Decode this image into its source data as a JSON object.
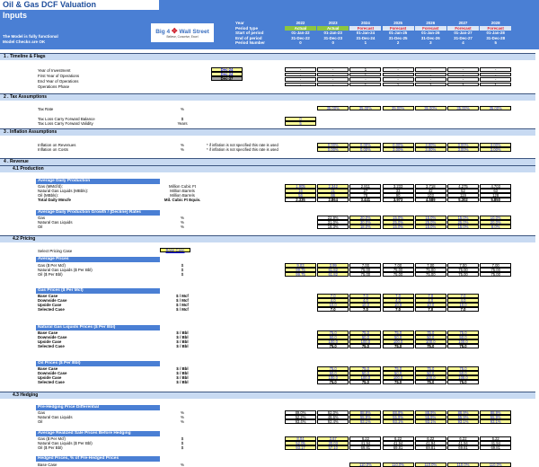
{
  "title": "Oil & Gas DCF Valuation",
  "subtitle": "Inputs",
  "status": [
    "The Model is fully functional",
    "Model Checks are OK"
  ],
  "logo": {
    "text_left": "Big 4",
    "text_right": "Wall Street",
    "tagline": "Believe, Conceive, Excel",
    "icon": "eagle-icon"
  },
  "header": {
    "labels": [
      "Year",
      "Period type",
      "Start of period",
      "End of period",
      "Period Number"
    ],
    "years": [
      "2022",
      "2023",
      "2024",
      "2025",
      "2026",
      "2027",
      "2028"
    ],
    "period_types": [
      "Actual",
      "Actual",
      "Forecast",
      "Forecast",
      "Forecast",
      "Forecast",
      "Forecast"
    ],
    "start": [
      "01-Jan-22",
      "01-Jan-23",
      "01-Jan-24",
      "01-Jan-25",
      "01-Jan-26",
      "01-Jan-27",
      "01-Jan-28"
    ],
    "end": [
      "31-Dec-22",
      "31-Dec-23",
      "31-Dec-24",
      "31-Dec-25",
      "31-Dec-26",
      "31-Dec-27",
      "31-Dec-28"
    ],
    "period_number": [
      "0",
      "0",
      "1",
      "2",
      "3",
      "4",
      "5"
    ]
  },
  "colors": {
    "accent": "#4a7fd4",
    "section": "#c8daf2",
    "input": "#ffff99",
    "actual": "#8dc63f",
    "forecast_text": "#e0202b"
  },
  "sections": {
    "s1": "1 . Timeline & Flags",
    "s2": "2 . Tax Assumptions",
    "s3": "3 . Inflation Assumptions",
    "s4": "4 . Revenue",
    "s41": "4.1   Production",
    "s42": "4.2   Pricing",
    "s43": "4.3   Hedging"
  },
  "timeline": {
    "labels": [
      "Year of Investment",
      "First Year of Operations",
      "End Year of Operations",
      "Operations Phase"
    ],
    "inputs": [
      "Dec-24",
      "Dec-24",
      "Dec-37"
    ],
    "rows": [
      [
        "-",
        "-",
        "1",
        "-",
        "-",
        "-",
        "-"
      ],
      [
        "-",
        "-",
        "1",
        "-",
        "-",
        "-",
        "-"
      ],
      [
        "-",
        "-",
        "-",
        "-",
        "-",
        "-",
        "-"
      ],
      [
        "-",
        "-",
        "1",
        "1",
        "1",
        "1",
        "1"
      ]
    ]
  },
  "tax": {
    "rate_label": "Tax Rate",
    "rate_unit": "%",
    "rates": [
      "35.00%",
      "35.00%",
      "35.00%",
      "35.00%",
      "35.00%",
      "35.00%"
    ],
    "tlcf_balance_label": "Tax Loss Carry Forward Balance",
    "tlcf_balance_unit": "$",
    "tlcf_balance": "0",
    "tlcf_validity_label": "Tax Loss Carry Forward Validity",
    "tlcf_validity_unit": "Years",
    "tlcf_validity": "5"
  },
  "inflation": {
    "rows": [
      {
        "label": "Inflation on Revenues",
        "unit": "%",
        "note": "* if inflation is not specified this rate is used",
        "values": [
          "0.00%",
          "0.00%",
          "0.00%",
          "3.00%",
          "0.00%",
          "3.00%"
        ]
      },
      {
        "label": "Inflation on Costs",
        "unit": "%",
        "note": "* if inflation is not specified this rate is used",
        "values": [
          "0.00%",
          "0.00%",
          "3.00%",
          "3.00%",
          "3.00%",
          "3.00%"
        ]
      }
    ]
  },
  "production": {
    "header": "Average Daily Production",
    "rows": [
      {
        "label": "Gas (MMcf/d):",
        "unit": "Million Cubic Ft",
        "values": [
          "1,905",
          "2,342",
          "2,811",
          "3,233",
          "3,718",
          "4,275",
          "4,703"
        ]
      },
      {
        "label": "Natural Gas Liquids (MBbls):",
        "unit": "Million Barrels",
        "values": [
          "16",
          "21",
          "27",
          "33",
          "42",
          "52",
          "63"
        ]
      },
      {
        "label": "Oil (MBbls):",
        "unit": "Million Barrels",
        "values": [
          "56",
          "66",
          "78",
          "90",
          "103",
          "119",
          "128"
        ]
      },
      {
        "label": "Total Daily Mmcfe",
        "unit": "Mil. Cubic Ft Equiv.",
        "values": [
          "2,335",
          "2,864",
          "3,441",
          "3,973",
          "4,589",
          "5,302",
          "5,850"
        ]
      }
    ],
    "growth_header": "Average Daily Production Growth / (Decline) Rates",
    "growth": [
      {
        "label": "Gas",
        "unit": "%",
        "values": [
          "22.9%",
          "20.0%",
          "15.0%",
          "15.0%",
          "15.0%",
          "10.0%"
        ]
      },
      {
        "label": "Natural Gas Liquids",
        "unit": "%",
        "values": [
          "31.0%",
          "30.0%",
          "25.0%",
          "25.0%",
          "25.0%",
          "20.0%"
        ]
      },
      {
        "label": "Oil",
        "unit": "%",
        "values": [
          "18.3%",
          "18.0%",
          "15.0%",
          "15.0%",
          "15.0%",
          "8.0%"
        ]
      }
    ]
  },
  "pricing": {
    "select_label": "Select Pricing Case",
    "select_value": "Base Case",
    "avg_header": "Average Prices",
    "avg": [
      {
        "label": "Gas ($ Per Mcf)",
        "unit": "$",
        "values": [
          "9.03",
          "3.99",
          "7.00",
          "7.00",
          "7.00",
          "7.00",
          "7.00"
        ]
      },
      {
        "label": "Natural Gas Liquids ($ Per Bbl)",
        "unit": "$",
        "values": [
          "99.75",
          "61.82",
          "75.00",
          "75.00",
          "75.00",
          "75.00",
          "75.00"
        ]
      },
      {
        "label": "Oil ($ Per Bbl)",
        "unit": "$",
        "values": [
          "99.75",
          "61.82",
          "75.00",
          "75.00",
          "75.00",
          "75.00",
          "75.00"
        ]
      }
    ],
    "case_labels": [
      "Base Case",
      "Downside Case",
      "Upside Case",
      "Selected Case"
    ],
    "gas": {
      "header": "Gas Prices ($ Per Mcf)",
      "unit": "$ / Mcf",
      "rows": [
        [
          "7.0",
          "7.0",
          "7.0",
          "7.0",
          "7.0"
        ],
        [
          "4.0",
          "4.0",
          "4.0",
          "4.0",
          "4.0"
        ],
        [
          "10.0",
          "10.0",
          "10.0",
          "10.0",
          "10.0"
        ],
        [
          "7.0",
          "7.0",
          "7.0",
          "7.0",
          "7.0"
        ]
      ]
    },
    "ngl": {
      "header": "Natural Gas Liquids Prices ($ Per Bbl)",
      "unit": "$ / Bbl",
      "rows": [
        [
          "75.0",
          "75.0",
          "75.0",
          "75.0",
          "75.0"
        ],
        [
          "50.0",
          "50.0",
          "50.0",
          "50.0",
          "50.0"
        ],
        [
          "100.0",
          "100.0",
          "100.0",
          "100.0",
          "100.0"
        ],
        [
          "75.0",
          "75.0",
          "75.0",
          "75.0",
          "75.0"
        ]
      ]
    },
    "oil": {
      "header": "Oil Prices ($ Per Bbl)",
      "unit": "$ / Bbl",
      "rows": [
        [
          "75.0",
          "75.0",
          "75.0",
          "75.0",
          "75.0"
        ],
        [
          "50.0",
          "50.0",
          "50.0",
          "50.0",
          "50.0"
        ],
        [
          "100.0",
          "100.0",
          "100.0",
          "100.0",
          "100.0"
        ],
        [
          "75.0",
          "75.0",
          "75.0",
          "75.0",
          "75.0"
        ]
      ]
    }
  },
  "hedging": {
    "diff_header": "Pre-Hedging Price Differential",
    "diff": [
      {
        "label": "Gas",
        "unit": "%",
        "values": [
          "89.0%",
          "92.0%",
          "88.9%",
          "88.9%",
          "88.9%",
          "88.9%",
          "88.9%"
        ]
      },
      {
        "label": "Natural Gas Liquids",
        "unit": "%",
        "values": [
          "52.2%",
          "48.6%",
          "55.9%",
          "55.9%",
          "55.9%",
          "55.9%",
          "55.9%"
        ]
      },
      {
        "label": "Oil",
        "unit": "%",
        "values": [
          "93.4%",
          "92.4%",
          "93.1%",
          "93.1%",
          "93.1%",
          "93.1%",
          "93.1%"
        ]
      }
    ],
    "realized_header": "Average Realized Sale Prices Before Hedging",
    "realized": [
      {
        "label": "Gas ($ Per Mcf)",
        "unit": "$",
        "values": [
          "8.04",
          "3.67",
          "6.22",
          "6.22",
          "6.22",
          "6.22",
          "6.22"
        ]
      },
      {
        "label": "Natural Gas Liquids ($ Per Bbl)",
        "unit": "$",
        "values": [
          "52.05",
          "30.03",
          "41.94",
          "41.94",
          "41.94",
          "41.94",
          "41.94"
        ]
      },
      {
        "label": "Oil ($ Per Bbl)",
        "unit": "$",
        "values": [
          "93.17",
          "57.10",
          "69.81",
          "69.81",
          "69.81",
          "69.81",
          "69.81"
        ]
      }
    ],
    "hedged_header": "Hedged Prices, % of Pre-Hedged Prices",
    "hedged": [
      {
        "label": "Base Case",
        "unit": "%",
        "values": [
          "110.0%",
          "110.0%",
          "110.0%",
          "110.0%",
          "110.0%"
        ]
      }
    ]
  }
}
